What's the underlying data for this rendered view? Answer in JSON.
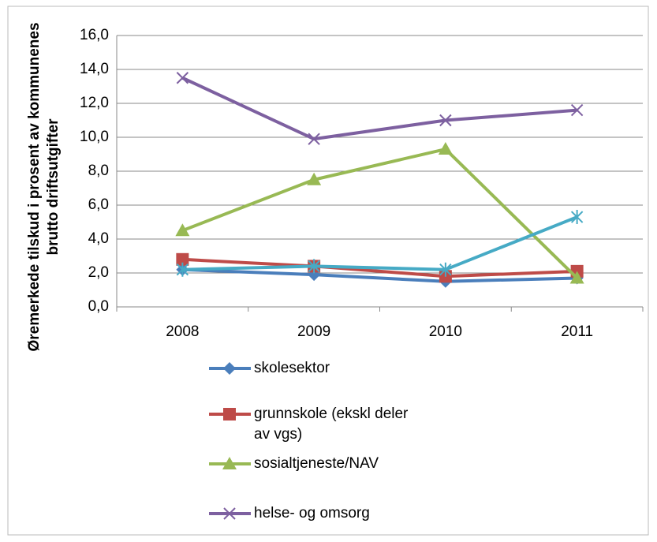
{
  "chart_data": {
    "type": "line",
    "ylabel": [
      "Øremerkede tilskud i prosent av kommunenes",
      "brutto driftsutgifter"
    ],
    "categories": [
      "2008",
      "2009",
      "2010",
      "2011"
    ],
    "series": [
      {
        "name": "skolesektor",
        "color": "#4a7ebb",
        "marker": "diamond",
        "values": [
          2.2,
          1.9,
          1.5,
          1.7
        ]
      },
      {
        "name": "grunnskole (ekskl deler av vgs)",
        "color": "#be4b48",
        "marker": "square",
        "values": [
          2.8,
          2.4,
          1.8,
          2.1
        ]
      },
      {
        "name": "sosialtjeneste/NAV",
        "color": "#98b954",
        "marker": "triangle",
        "values": [
          4.5,
          7.5,
          9.3,
          1.7
        ]
      },
      {
        "name": "helse- og omsorg",
        "color": "#7d60a0",
        "marker": "x",
        "values": [
          13.5,
          9.9,
          11.0,
          11.6
        ]
      },
      {
        "color": "#46aac5",
        "marker": "star",
        "values": [
          2.2,
          2.4,
          2.2,
          5.3
        ]
      }
    ],
    "ylim": [
      0,
      16
    ],
    "yticks": [
      {
        "value": 0,
        "label": "0,0"
      },
      {
        "value": 2,
        "label": "2,0"
      },
      {
        "value": 4,
        "label": "4,0"
      },
      {
        "value": 6,
        "label": "6,0"
      },
      {
        "value": 8,
        "label": "8,0"
      },
      {
        "value": 10,
        "label": "10,0"
      },
      {
        "value": 12,
        "label": "12,0"
      },
      {
        "value": 14,
        "label": "14,0"
      },
      {
        "value": 16,
        "label": "16,0"
      }
    ],
    "grid": true
  }
}
